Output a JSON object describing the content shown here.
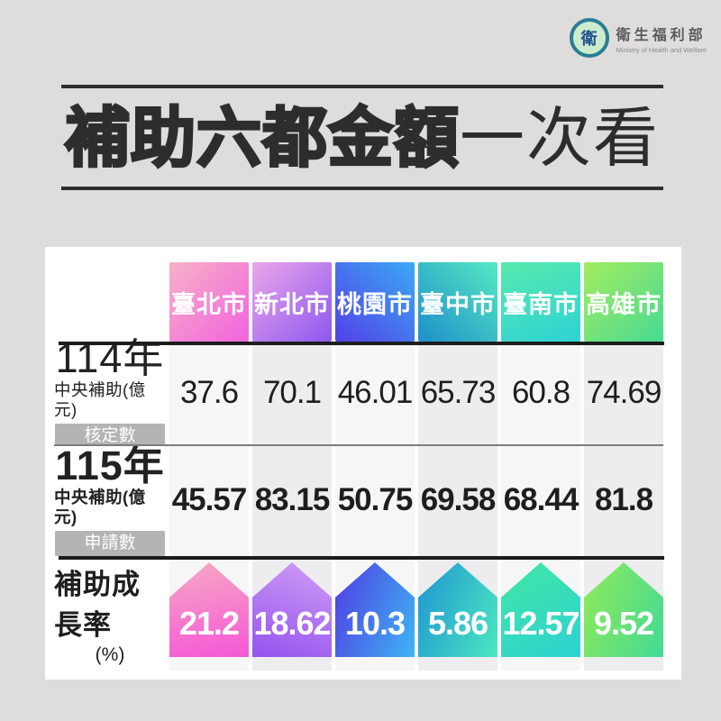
{
  "brand": {
    "org_zh": "衛生福利部",
    "org_en": "Ministry of Health and Welfare",
    "logo_glyph": "衛"
  },
  "title": {
    "heavy": "補助六都金額",
    "light": "一次看"
  },
  "table": {
    "cities": [
      {
        "label": "臺北市",
        "gradient": {
          "angle": "135deg",
          "from": "#f7b1c7",
          "to": "#f263de"
        }
      },
      {
        "label": "新北市",
        "gradient": {
          "angle": "135deg",
          "from": "#eba6e9",
          "to": "#8d58f0"
        }
      },
      {
        "label": "桃園市",
        "gradient": {
          "angle": "45deg",
          "from": "#5340e8",
          "to": "#3ba9f4"
        }
      },
      {
        "label": "臺中市",
        "gradient": {
          "angle": "45deg",
          "from": "#1e8fc9",
          "to": "#55e9c4"
        }
      },
      {
        "label": "臺南市",
        "gradient": {
          "angle": "160deg",
          "from": "#57e9ad",
          "to": "#2fd2d5"
        }
      },
      {
        "label": "高雄市",
        "gradient": {
          "angle": "135deg",
          "from": "#a4ec60",
          "to": "#46da93"
        }
      }
    ],
    "rows": [
      {
        "year": "114年",
        "subtitle": "中央補助(億元)",
        "badge": "核定數",
        "values": [
          "37.6",
          "70.1",
          "46.01",
          "65.73",
          "60.8",
          "74.69"
        ]
      },
      {
        "year": "115年",
        "subtitle": "中央補助(億元)",
        "badge": "申請數",
        "values": [
          "45.57",
          "83.15",
          "50.75",
          "69.58",
          "68.44",
          "81.8"
        ]
      }
    ],
    "growth": {
      "label": "補助成長率",
      "unit": "(%)",
      "values": [
        "21.2",
        "18.62",
        "10.3",
        "5.86",
        "12.57",
        "9.52"
      ],
      "arrows": [
        {
          "angle": "170deg",
          "from": "#f7a9c4",
          "to": "#f557d6"
        },
        {
          "angle": "200deg",
          "from": "#d09ef4",
          "to": "#9552ef"
        },
        {
          "angle": "110deg",
          "from": "#4f3be2",
          "to": "#3eb5f4"
        },
        {
          "angle": "110deg",
          "from": "#1f95d2",
          "to": "#4be7c1"
        },
        {
          "angle": "150deg",
          "from": "#42e6a4",
          "to": "#2dd2d2"
        },
        {
          "angle": "110deg",
          "from": "#90ea58",
          "to": "#43da95"
        }
      ]
    }
  },
  "chart_data": {
    "type": "table",
    "title": "補助六都金額一次看",
    "categories": [
      "臺北市",
      "新北市",
      "桃園市",
      "臺中市",
      "臺南市",
      "高雄市"
    ],
    "series": [
      {
        "name": "114年中央補助(億元) 核定數",
        "values": [
          37.6,
          70.1,
          46.01,
          65.73,
          60.8,
          74.69
        ]
      },
      {
        "name": "115年中央補助(億元) 申請數",
        "values": [
          45.57,
          83.15,
          50.75,
          69.58,
          68.44,
          81.8
        ]
      },
      {
        "name": "補助成長率(%)",
        "values": [
          21.2,
          18.62,
          10.3,
          5.86,
          12.57,
          9.52
        ]
      }
    ],
    "legend_position": "none",
    "grid": false
  }
}
